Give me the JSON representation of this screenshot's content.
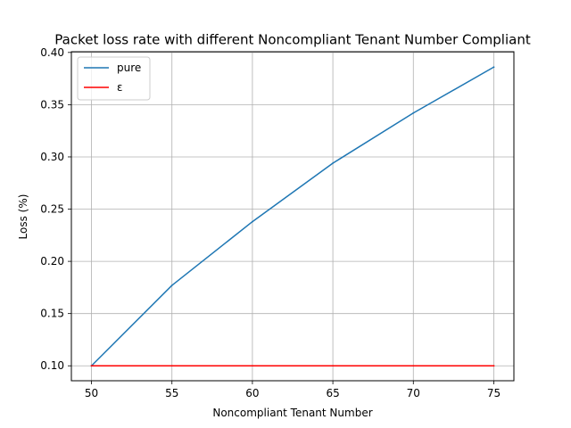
{
  "chart_data": {
    "type": "line",
    "title": "Packet loss rate with different Noncompliant Tenant Number Compliant",
    "xlabel": "Noncompliant Tenant Number",
    "ylabel": "Loss (%)",
    "x": [
      50,
      55,
      60,
      65,
      70,
      75
    ],
    "xlim": [
      48.75,
      76.25
    ],
    "ylim": [
      0.0857,
      0.4007
    ],
    "xticks": [
      50,
      55,
      60,
      65,
      70,
      75
    ],
    "yticks": [
      0.1,
      0.15,
      0.2,
      0.25,
      0.3,
      0.35,
      0.4
    ],
    "xtick_labels": [
      "50",
      "55",
      "60",
      "65",
      "70",
      "75"
    ],
    "ytick_labels": [
      "0.10",
      "0.15",
      "0.20",
      "0.25",
      "0.30",
      "0.35",
      "0.40"
    ],
    "grid": true,
    "legend_position": "upper-left",
    "series": [
      {
        "name": "pure",
        "color": "#1f77b4",
        "values": [
          0.1,
          0.177,
          0.238,
          0.294,
          0.342,
          0.386
        ]
      },
      {
        "name": "ε",
        "color": "#ff0000",
        "values": [
          0.1,
          0.1,
          0.1,
          0.1,
          0.1,
          0.1
        ]
      }
    ]
  }
}
